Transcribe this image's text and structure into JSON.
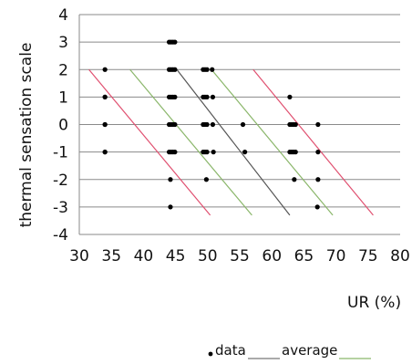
{
  "chart_data": {
    "type": "scatter",
    "title": "",
    "xlabel": "UR (%)",
    "ylabel": "thermal sensation scale",
    "xlim": [
      30,
      80
    ],
    "ylim": [
      -4,
      4
    ],
    "xticks": [
      "30",
      "35",
      "40",
      "45",
      "50",
      "55",
      "60",
      "65",
      "70",
      "75",
      "80"
    ],
    "yticks": [
      "4",
      "3",
      "2",
      "1",
      "0",
      "-1",
      "-2",
      "-3",
      "-4"
    ],
    "grid": "horizontal",
    "legend_position": "bottom-right",
    "series": [
      {
        "name": "data",
        "kind": "points",
        "color": "#000000",
        "points": [
          [
            34,
            2
          ],
          [
            34,
            1
          ],
          [
            34,
            1
          ],
          [
            34,
            0
          ],
          [
            34,
            0
          ],
          [
            34,
            -1
          ],
          [
            34,
            -1
          ],
          [
            44,
            3
          ],
          [
            44.3,
            3
          ],
          [
            44.6,
            3
          ],
          [
            44.9,
            3
          ],
          [
            44,
            2
          ],
          [
            44.3,
            2
          ],
          [
            44.6,
            2
          ],
          [
            44.9,
            2
          ],
          [
            44,
            1
          ],
          [
            44.3,
            1
          ],
          [
            44.6,
            1
          ],
          [
            44.9,
            1
          ],
          [
            44,
            0
          ],
          [
            44.3,
            0
          ],
          [
            44.6,
            0
          ],
          [
            44.9,
            0
          ],
          [
            44,
            -1
          ],
          [
            44.3,
            -1
          ],
          [
            44.6,
            -1
          ],
          [
            44.9,
            -1
          ],
          [
            44.2,
            -2
          ],
          [
            44.2,
            -3
          ],
          [
            49.3,
            2
          ],
          [
            49.6,
            2
          ],
          [
            49.9,
            2
          ],
          [
            50.7,
            2
          ],
          [
            49.3,
            1
          ],
          [
            49.6,
            1
          ],
          [
            49.9,
            1
          ],
          [
            50.8,
            1
          ],
          [
            49.3,
            0
          ],
          [
            49.6,
            0
          ],
          [
            49.9,
            0
          ],
          [
            50.8,
            0
          ],
          [
            49.3,
            -1
          ],
          [
            49.6,
            -1
          ],
          [
            49.9,
            -1
          ],
          [
            50.9,
            -1
          ],
          [
            49.8,
            -2
          ],
          [
            55.5,
            0
          ],
          [
            55.8,
            -1
          ],
          [
            62.8,
            1
          ],
          [
            62.8,
            0
          ],
          [
            63.1,
            0
          ],
          [
            63.4,
            0
          ],
          [
            63.7,
            0
          ],
          [
            62.8,
            -1
          ],
          [
            63.1,
            -1
          ],
          [
            63.4,
            -1
          ],
          [
            63.7,
            -1
          ],
          [
            63.5,
            -2
          ],
          [
            67.2,
            0
          ],
          [
            67.2,
            -1
          ],
          [
            67.2,
            -2
          ],
          [
            67.1,
            -3
          ]
        ]
      },
      {
        "name": "average",
        "kind": "line",
        "color": "#555555",
        "from": [
          45.2,
          2
        ],
        "to": [
          62.8,
          -3.3
        ]
      },
      {
        "name": "",
        "kind": "line",
        "color": "#8ab66a",
        "from": [
          37.9,
          2
        ],
        "to": [
          56.9,
          -3.3
        ]
      },
      {
        "name": "",
        "kind": "line",
        "color": "#8ab66a",
        "from": [
          50.6,
          2
        ],
        "to": [
          69.5,
          -3.3
        ]
      },
      {
        "name": "",
        "kind": "line",
        "color": "#e05070",
        "from": [
          31.5,
          2
        ],
        "to": [
          50.4,
          -3.3
        ]
      },
      {
        "name": "",
        "kind": "line",
        "color": "#e05070",
        "from": [
          57.1,
          2
        ],
        "to": [
          75.8,
          -3.3
        ]
      }
    ]
  },
  "legend": {
    "items": [
      {
        "label": "data",
        "marker": "dot",
        "color": "#000000"
      },
      {
        "label": "average",
        "marker": "line",
        "color": "#555555"
      },
      {
        "label": "",
        "marker": "line",
        "color": "#8ab66a"
      }
    ]
  }
}
